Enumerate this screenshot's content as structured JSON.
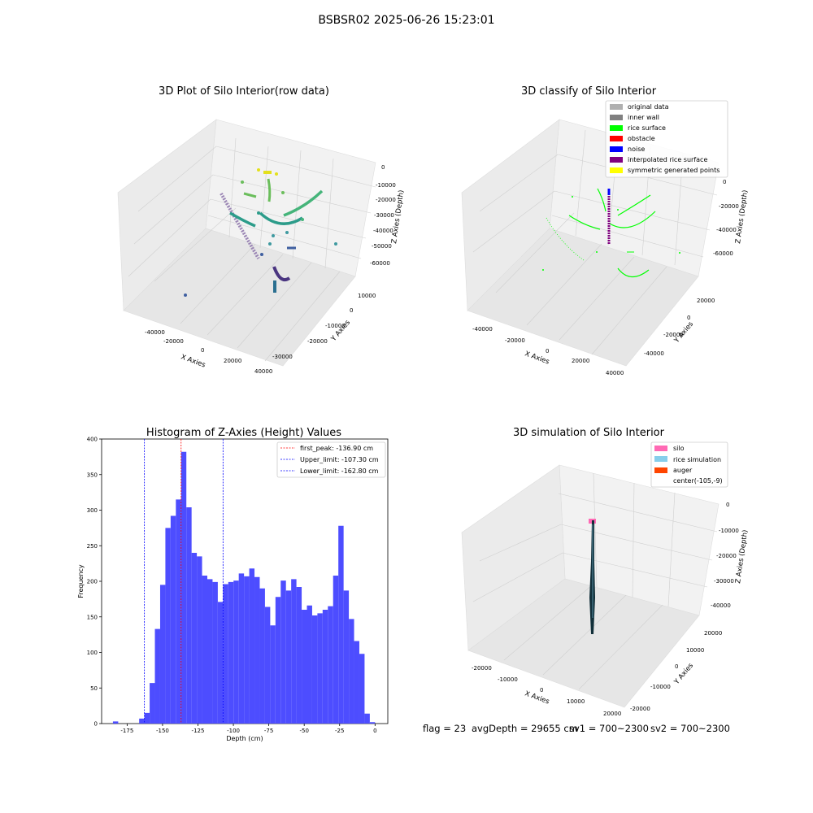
{
  "figure": {
    "suptitle": "BSBSR02 2025-06-26 15:23:01",
    "footer": {
      "flag": "flag = 23",
      "avg_depth": "avgDepth = 29655 cm",
      "sv1": "sv1 = 700~2300",
      "sv2": "sv2 = 700~2300"
    }
  },
  "chart_data": [
    {
      "type": "scatter",
      "subtype": "3d",
      "title": "3D Plot of Silo Interior(row data)",
      "xlabel": "X Axies",
      "ylabel": "Y Axies",
      "zlabel": "Z Axies (Depth)",
      "x_ticks": [
        "-40000",
        "-20000",
        "0",
        "20000",
        "40000"
      ],
      "y_ticks": [
        "-30000",
        "-20000",
        "-10000",
        "0",
        "10000"
      ],
      "z_ticks": [
        "0",
        "-10000",
        "-20000",
        "-30000",
        "-40000",
        "-50000",
        "-60000"
      ],
      "grid": true
    },
    {
      "type": "scatter",
      "subtype": "3d",
      "title": "3D classify of Silo Interior",
      "xlabel": "X Axies",
      "ylabel": "Y Axies",
      "zlabel": "Z Axies (Depth)",
      "x_ticks": [
        "-40000",
        "-20000",
        "0",
        "20000",
        "40000"
      ],
      "y_ticks": [
        "-40000",
        "-20000",
        "0",
        "20000"
      ],
      "z_ticks": [
        "0",
        "-20000",
        "-40000",
        "-60000"
      ],
      "grid": true,
      "legend_position": "top-right",
      "legend": [
        {
          "label": "original data",
          "color": "#b0b0b0"
        },
        {
          "label": "inner wall",
          "color": "#808080"
        },
        {
          "label": "rice surface",
          "color": "#00ff00"
        },
        {
          "label": "obstacle",
          "color": "#ff0000"
        },
        {
          "label": "noise",
          "color": "#0000ff"
        },
        {
          "label": "interpolated rice surface",
          "color": "#800080"
        },
        {
          "label": "symmetric generated points",
          "color": "#ffff00"
        }
      ]
    },
    {
      "type": "bar",
      "subtype": "histogram",
      "title": "Histogram of Z-Axies (Height) Values",
      "xlabel": "Depth (cm)",
      "ylabel": "Frequency",
      "xlim": [
        -193,
        9
      ],
      "ylim": [
        0,
        400
      ],
      "x_ticks": [
        -175,
        -150,
        -125,
        -100,
        -75,
        -50,
        -25,
        0
      ],
      "y_ticks": [
        0,
        50,
        100,
        150,
        200,
        250,
        300,
        350,
        400
      ],
      "bar_color": "#4d4dff",
      "bin_edges": [
        -185,
        -181.3,
        -177.6,
        -173.9,
        -170.2,
        -166.5,
        -162.8,
        -159.1,
        -155.4,
        -151.7,
        -148.0,
        -144.3,
        -140.6,
        -136.9,
        -133.2,
        -129.5,
        -125.8,
        -122.1,
        -118.4,
        -114.7,
        -111.0,
        -107.3,
        -103.6,
        -99.9,
        -96.2,
        -92.5,
        -88.8,
        -85.1,
        -81.4,
        -77.7,
        -74.0,
        -70.3,
        -66.6,
        -62.9,
        -59.2,
        -55.5,
        -51.8,
        -48.1,
        -44.4,
        -40.7,
        -37.0,
        -33.3,
        -29.6,
        -25.9,
        -22.2,
        -18.5,
        -14.8,
        -11.1,
        -7.4,
        -3.7,
        0
      ],
      "counts": [
        3,
        0,
        0,
        0,
        0,
        7,
        15,
        57,
        133,
        195,
        275,
        292,
        315,
        382,
        304,
        240,
        235,
        208,
        203,
        199,
        171,
        196,
        199,
        201,
        211,
        207,
        218,
        206,
        190,
        164,
        138,
        178,
        201,
        187,
        203,
        192,
        160,
        166,
        152,
        155,
        160,
        165,
        208,
        278,
        187,
        147,
        116,
        98,
        14,
        2
      ],
      "vlines": [
        {
          "label": "first_peak: -136.90 cm",
          "x": -136.9,
          "color": "#ff0000"
        },
        {
          "label": "Upper_limit: -107.30 cm",
          "x": -107.3,
          "color": "#0000ff"
        },
        {
          "label": "Lower_limit: -162.80 cm",
          "x": -162.8,
          "color": "#0000ff"
        }
      ],
      "legend_position": "top-right"
    },
    {
      "type": "line",
      "subtype": "3d-surface",
      "title": "3D simulation of Silo Interior",
      "xlabel": "X Axies",
      "ylabel": "Y Axies",
      "zlabel": "Z Axies (Depth)",
      "x_ticks": [
        "-20000",
        "-10000",
        "0",
        "10000",
        "20000"
      ],
      "y_ticks": [
        "-20000",
        "-10000",
        "0",
        "10000",
        "20000"
      ],
      "z_ticks": [
        "0",
        "-10000",
        "-20000",
        "-30000",
        "-40000"
      ],
      "grid": true,
      "legend_position": "top-right",
      "legend": [
        {
          "label": "silo",
          "color": "#ff69b4"
        },
        {
          "label": "rice simulation",
          "color": "#87ceeb"
        },
        {
          "label": "auger",
          "color": "#ff4500"
        },
        {
          "label": "center(-105,-9)",
          "color": ""
        }
      ]
    }
  ]
}
